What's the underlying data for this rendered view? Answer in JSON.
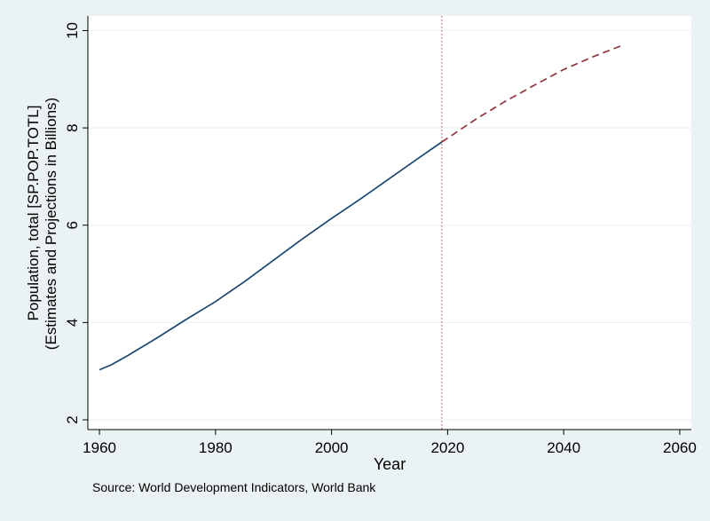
{
  "chart_data": {
    "type": "line",
    "xlabel": "Year",
    "ylabel_line1": "Population, total [SP.POP.TOTL]",
    "ylabel_line2": "(Estimates and Projections in Billions)",
    "note": "Source: World Development Indicators, World Bank",
    "xlim": [
      1958,
      2062
    ],
    "ylim": [
      1.8,
      10.3
    ],
    "xticks": [
      1960,
      1980,
      2000,
      2020,
      2040,
      2060
    ],
    "yticks": [
      2,
      4,
      6,
      8,
      10
    ],
    "grid": true,
    "legend": "none",
    "reference_line": {
      "x": 2019,
      "style": "dotted",
      "color": "#c0403a"
    },
    "series": [
      {
        "style": "solid",
        "color": "#1a476f",
        "x": [
          1960,
          1962,
          1965,
          1970,
          1975,
          1980,
          1985,
          1990,
          1995,
          2000,
          2005,
          2010,
          2015,
          2019
        ],
        "y": [
          3.03,
          3.13,
          3.33,
          3.69,
          4.07,
          4.43,
          4.84,
          5.28,
          5.72,
          6.14,
          6.54,
          6.96,
          7.38,
          7.71
        ]
      },
      {
        "style": "dashed",
        "color": "#90353b",
        "x": [
          2019,
          2020,
          2025,
          2030,
          2035,
          2040,
          2045,
          2050
        ],
        "y": [
          7.71,
          7.79,
          8.19,
          8.55,
          8.88,
          9.2,
          9.46,
          9.69
        ]
      }
    ],
    "colors": {
      "background": "#eaf2f3",
      "plot_area": "#ffffff",
      "grid": "#eaf2f3",
      "axis": "#000000"
    }
  }
}
